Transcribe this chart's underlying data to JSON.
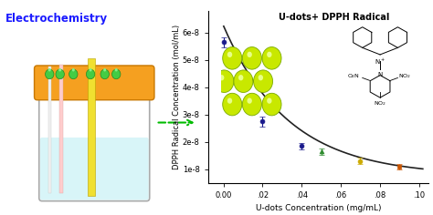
{
  "title": "U-dots+ DPPH Radical",
  "xlabel": "U-dots Concentration (mg/mL)",
  "ylabel": "DPPH Radical Concentration (mol/mL)",
  "xlim": [
    -0.008,
    0.105
  ],
  "ylim": [
    5e-09,
    6.8e-08
  ],
  "yticks": [
    1e-08,
    2e-08,
    3e-08,
    4e-08,
    5e-08,
    6e-08
  ],
  "ytick_labels": [
    "1e-8",
    "2e-8",
    "3e-8",
    "4e-8",
    "5e-8",
    "6e-8"
  ],
  "xticks": [
    0.0,
    0.02,
    0.04,
    0.06,
    0.08,
    0.1
  ],
  "xtick_labels": [
    "0.00",
    ".02",
    ".04",
    ".06",
    ".08",
    ".10"
  ],
  "data_x": [
    0.0,
    0.02,
    0.04,
    0.05,
    0.07,
    0.09
  ],
  "data_y": [
    5.65e-08,
    2.75e-08,
    1.85e-08,
    1.65e-08,
    1.3e-08,
    1.1e-08
  ],
  "data_colors": [
    "#1a1a8c",
    "#1a1a8c",
    "#1a1a8c",
    "#2e8b2e",
    "#ccaa00",
    "#cc5500"
  ],
  "data_markers": [
    "o",
    "o",
    "o",
    "^",
    "o",
    "s"
  ],
  "yerr": [
    1.8e-09,
    1.8e-09,
    1.2e-09,
    1.2e-09,
    1.2e-09,
    1e-09
  ],
  "curve_a": 5.5e-08,
  "curve_b": 30,
  "curve_c": 7.5e-09,
  "curve_color": "#222222",
  "background_color": "#ffffff",
  "electrochemistry_label": "Electrochemistry",
  "arrow_color": "#00bb00",
  "beaker_color": "#e8e8e8",
  "liquid_color": "#d8f5f8",
  "cap_color": "#f5a020",
  "cap_edge_color": "#c87800",
  "green_plug_color": "#44cc44",
  "yellow_rod_color": "#f0e030",
  "pink_rod_color": "#ffcccc",
  "dot_fill": "#c8e800",
  "dot_edge": "#7aaa00"
}
